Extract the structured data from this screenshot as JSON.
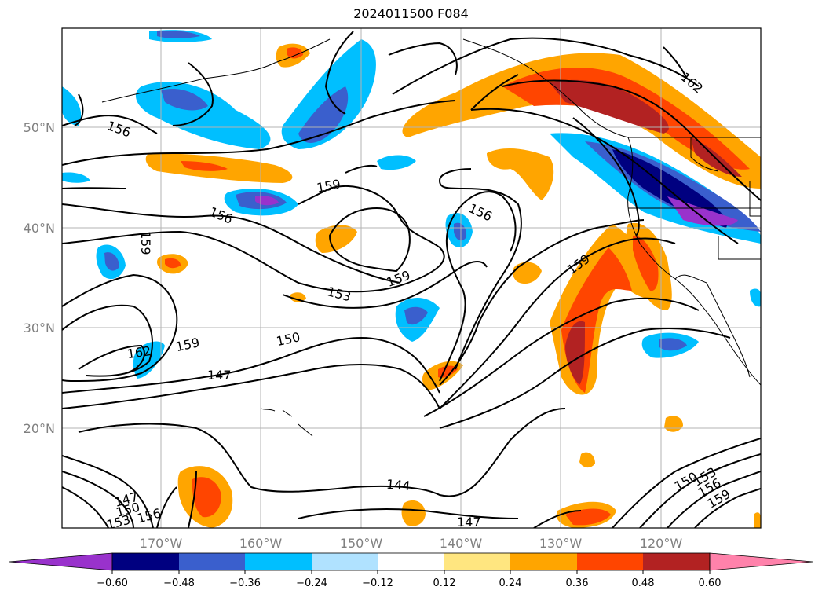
{
  "title": "2024011500 F084",
  "map": {
    "lat_labels": [
      "50°N",
      "40°N",
      "30°N",
      "20°N"
    ],
    "lon_labels": [
      "170°W",
      "160°W",
      "150°W",
      "140°W",
      "130°W",
      "120°W"
    ],
    "contour_labels": [
      "162",
      "156",
      "159",
      "156",
      "156",
      "159",
      "159",
      "159",
      "153",
      "150",
      "162",
      "159",
      "147",
      "144",
      "147",
      "147",
      "150",
      "153",
      "156",
      "150",
      "153",
      "156",
      "159"
    ],
    "contour_line_color": "#000000"
  },
  "colorbar": {
    "ticks": [
      "−0.60",
      "−0.48",
      "−0.36",
      "−0.24",
      "−0.12",
      "0.12",
      "0.24",
      "0.36",
      "0.48",
      "0.60"
    ],
    "colors": [
      "#9932cc",
      "#000080",
      "#3a5fcd",
      "#00bfff",
      "#b0e2ff",
      "#ffffff",
      "#ffe680",
      "#ffa500",
      "#ff4500",
      "#b22222",
      "#ff82ab"
    ]
  }
}
